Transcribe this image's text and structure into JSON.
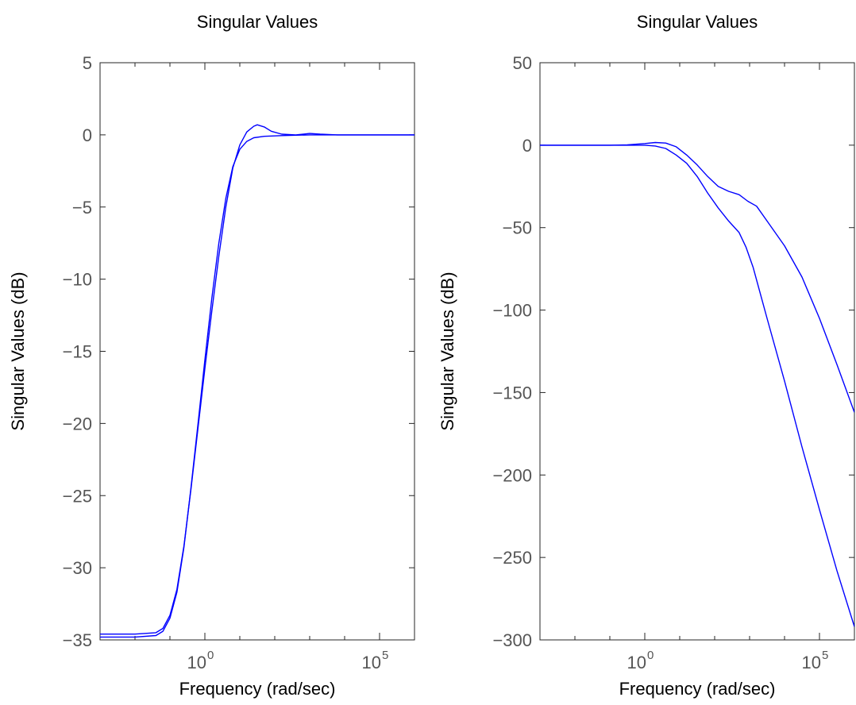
{
  "chart_data": [
    {
      "type": "line",
      "title": "Singular Values",
      "xlabel": "Frequency (rad/sec)",
      "ylabel": "Singular Values (dB)",
      "xscale": "log",
      "xlim_exponent": [
        -3,
        6
      ],
      "ylim": [
        -35,
        5
      ],
      "xticks": [
        {
          "exp": 0,
          "base": "10",
          "sup": "0"
        },
        {
          "exp": 5,
          "base": "10",
          "sup": "5"
        }
      ],
      "yticks": [
        {
          "v": 5,
          "label": "5"
        },
        {
          "v": 0,
          "label": "0"
        },
        {
          "v": -5,
          "label": "−5"
        },
        {
          "v": -10,
          "label": "−10"
        },
        {
          "v": -15,
          "label": "−15"
        },
        {
          "v": -20,
          "label": "−20"
        },
        {
          "v": -25,
          "label": "−25"
        },
        {
          "v": -30,
          "label": "−30"
        },
        {
          "v": -35,
          "label": "−35"
        }
      ],
      "grid": false,
      "line_color": "#0000ff",
      "series": [
        {
          "points": [
            [
              -3,
              -34.6
            ],
            [
              -2,
              -34.6
            ],
            [
              -1.4,
              -34.5
            ],
            [
              -1.2,
              -34.2
            ],
            [
              -1,
              -33.3
            ],
            [
              -0.8,
              -31.5
            ],
            [
              -0.6,
              -28.5
            ],
            [
              -0.4,
              -24.6
            ],
            [
              -0.2,
              -20.4
            ],
            [
              0,
              -16.2
            ],
            [
              0.2,
              -12.2
            ],
            [
              0.4,
              -8.4
            ],
            [
              0.6,
              -5
            ],
            [
              0.8,
              -2.3
            ],
            [
              1,
              -0.7
            ],
            [
              1.2,
              0.2
            ],
            [
              1.4,
              0.6
            ],
            [
              1.5,
              0.7
            ],
            [
              1.7,
              0.55
            ],
            [
              1.9,
              0.25
            ],
            [
              2.2,
              0.05
            ],
            [
              2.6,
              0
            ],
            [
              3,
              0.1
            ],
            [
              3.3,
              0.05
            ],
            [
              3.8,
              0
            ],
            [
              6,
              0
            ]
          ]
        },
        {
          "points": [
            [
              -3,
              -34.8
            ],
            [
              -2,
              -34.8
            ],
            [
              -1.4,
              -34.7
            ],
            [
              -1.2,
              -34.4
            ],
            [
              -1,
              -33.5
            ],
            [
              -0.8,
              -31.7
            ],
            [
              -0.6,
              -28.6
            ],
            [
              -0.4,
              -24.5
            ],
            [
              -0.2,
              -20.1
            ],
            [
              0,
              -15.6
            ],
            [
              0.2,
              -11.3
            ],
            [
              0.4,
              -7.5
            ],
            [
              0.6,
              -4.4
            ],
            [
              0.8,
              -2.2
            ],
            [
              1,
              -1
            ],
            [
              1.2,
              -0.45
            ],
            [
              1.4,
              -0.2
            ],
            [
              1.7,
              -0.1
            ],
            [
              2.2,
              -0.05
            ],
            [
              3,
              0
            ],
            [
              6,
              0
            ]
          ]
        }
      ]
    },
    {
      "type": "line",
      "title": "Singular Values",
      "xlabel": "Frequency (rad/sec)",
      "ylabel": "Singular Values (dB)",
      "xscale": "log",
      "xlim_exponent": [
        -3,
        6
      ],
      "ylim": [
        -300,
        50
      ],
      "xticks": [
        {
          "exp": 0,
          "base": "10",
          "sup": "0"
        },
        {
          "exp": 5,
          "base": "10",
          "sup": "5"
        }
      ],
      "yticks": [
        {
          "v": 50,
          "label": "50"
        },
        {
          "v": 0,
          "label": "0"
        },
        {
          "v": -50,
          "label": "−50"
        },
        {
          "v": -100,
          "label": "−100"
        },
        {
          "v": -150,
          "label": "−150"
        },
        {
          "v": -200,
          "label": "−200"
        },
        {
          "v": -250,
          "label": "−250"
        },
        {
          "v": -300,
          "label": "−300"
        }
      ],
      "grid": false,
      "line_color": "#0000ff",
      "series": [
        {
          "points": [
            [
              -3,
              0
            ],
            [
              -1,
              0
            ],
            [
              -0.5,
              0.2
            ],
            [
              0,
              1
            ],
            [
              0.3,
              1.6
            ],
            [
              0.6,
              1.3
            ],
            [
              0.9,
              -1
            ],
            [
              1.2,
              -6
            ],
            [
              1.5,
              -12
            ],
            [
              1.8,
              -19
            ],
            [
              2.1,
              -25
            ],
            [
              2.4,
              -28
            ],
            [
              2.7,
              -30
            ],
            [
              2.95,
              -34
            ],
            [
              3.2,
              -37
            ],
            [
              3.5,
              -46
            ],
            [
              4,
              -61
            ],
            [
              4.5,
              -80
            ],
            [
              5,
              -105
            ],
            [
              5.5,
              -133
            ],
            [
              6,
              -162
            ]
          ]
        },
        {
          "points": [
            [
              -3,
              0
            ],
            [
              -1,
              0
            ],
            [
              -0.5,
              0
            ],
            [
              0,
              0
            ],
            [
              0.3,
              -0.5
            ],
            [
              0.6,
              -2
            ],
            [
              0.9,
              -6
            ],
            [
              1.2,
              -11
            ],
            [
              1.5,
              -19
            ],
            [
              1.8,
              -29
            ],
            [
              2.1,
              -38
            ],
            [
              2.4,
              -46
            ],
            [
              2.7,
              -53
            ],
            [
              2.9,
              -62
            ],
            [
              3.1,
              -74
            ],
            [
              3.5,
              -105
            ],
            [
              4,
              -143
            ],
            [
              4.5,
              -183
            ],
            [
              5,
              -221
            ],
            [
              5.5,
              -258
            ],
            [
              6,
              -292
            ]
          ]
        }
      ]
    }
  ]
}
